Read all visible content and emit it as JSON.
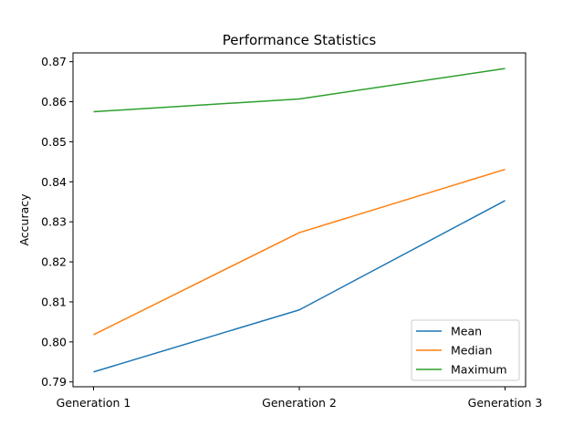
{
  "chart_data": {
    "type": "line",
    "title": "Performance Statistics",
    "xlabel": "",
    "ylabel": "Accuracy",
    "categories": [
      "Generation 1",
      "Generation 2",
      "Generation 3"
    ],
    "yticks": [
      "0.79",
      "0.80",
      "0.81",
      "0.82",
      "0.83",
      "0.84",
      "0.85",
      "0.86",
      "0.87"
    ],
    "ylim": [
      0.7888,
      0.8722
    ],
    "grid": false,
    "legend_position": "lower-right",
    "series": [
      {
        "name": "Mean",
        "color": "#1f77b4",
        "values": [
          0.7925,
          0.808,
          0.8353
        ]
      },
      {
        "name": "Median",
        "color": "#ff7f0e",
        "values": [
          0.8018,
          0.8273,
          0.8431
        ]
      },
      {
        "name": "Maximum",
        "color": "#2ca02c",
        "values": [
          0.8575,
          0.8607,
          0.8683
        ]
      }
    ]
  }
}
